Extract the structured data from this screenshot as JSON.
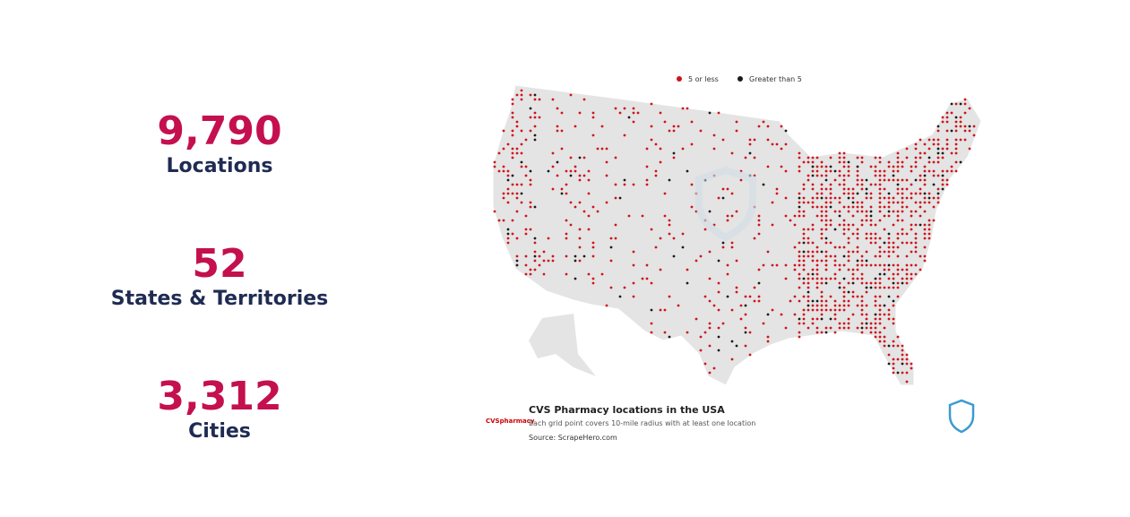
{
  "stats": [
    {
      "number": "9,790",
      "label": "Locations"
    },
    {
      "number": "52",
      "label": "States & Territories"
    },
    {
      "number": "3,312",
      "label": "Cities"
    }
  ],
  "map": {
    "legend": [
      {
        "label": "5 or less",
        "color": "#d0121b"
      },
      {
        "label": "Greater than 5",
        "color": "#1a1a1a"
      }
    ],
    "logo": "CVSpharmacy",
    "title": "CVS Pharmacy locations in the USA",
    "subtitle": "Each grid point covers 10-mile radius with at least one location",
    "source": "Source: ScrapeHero.com"
  }
}
